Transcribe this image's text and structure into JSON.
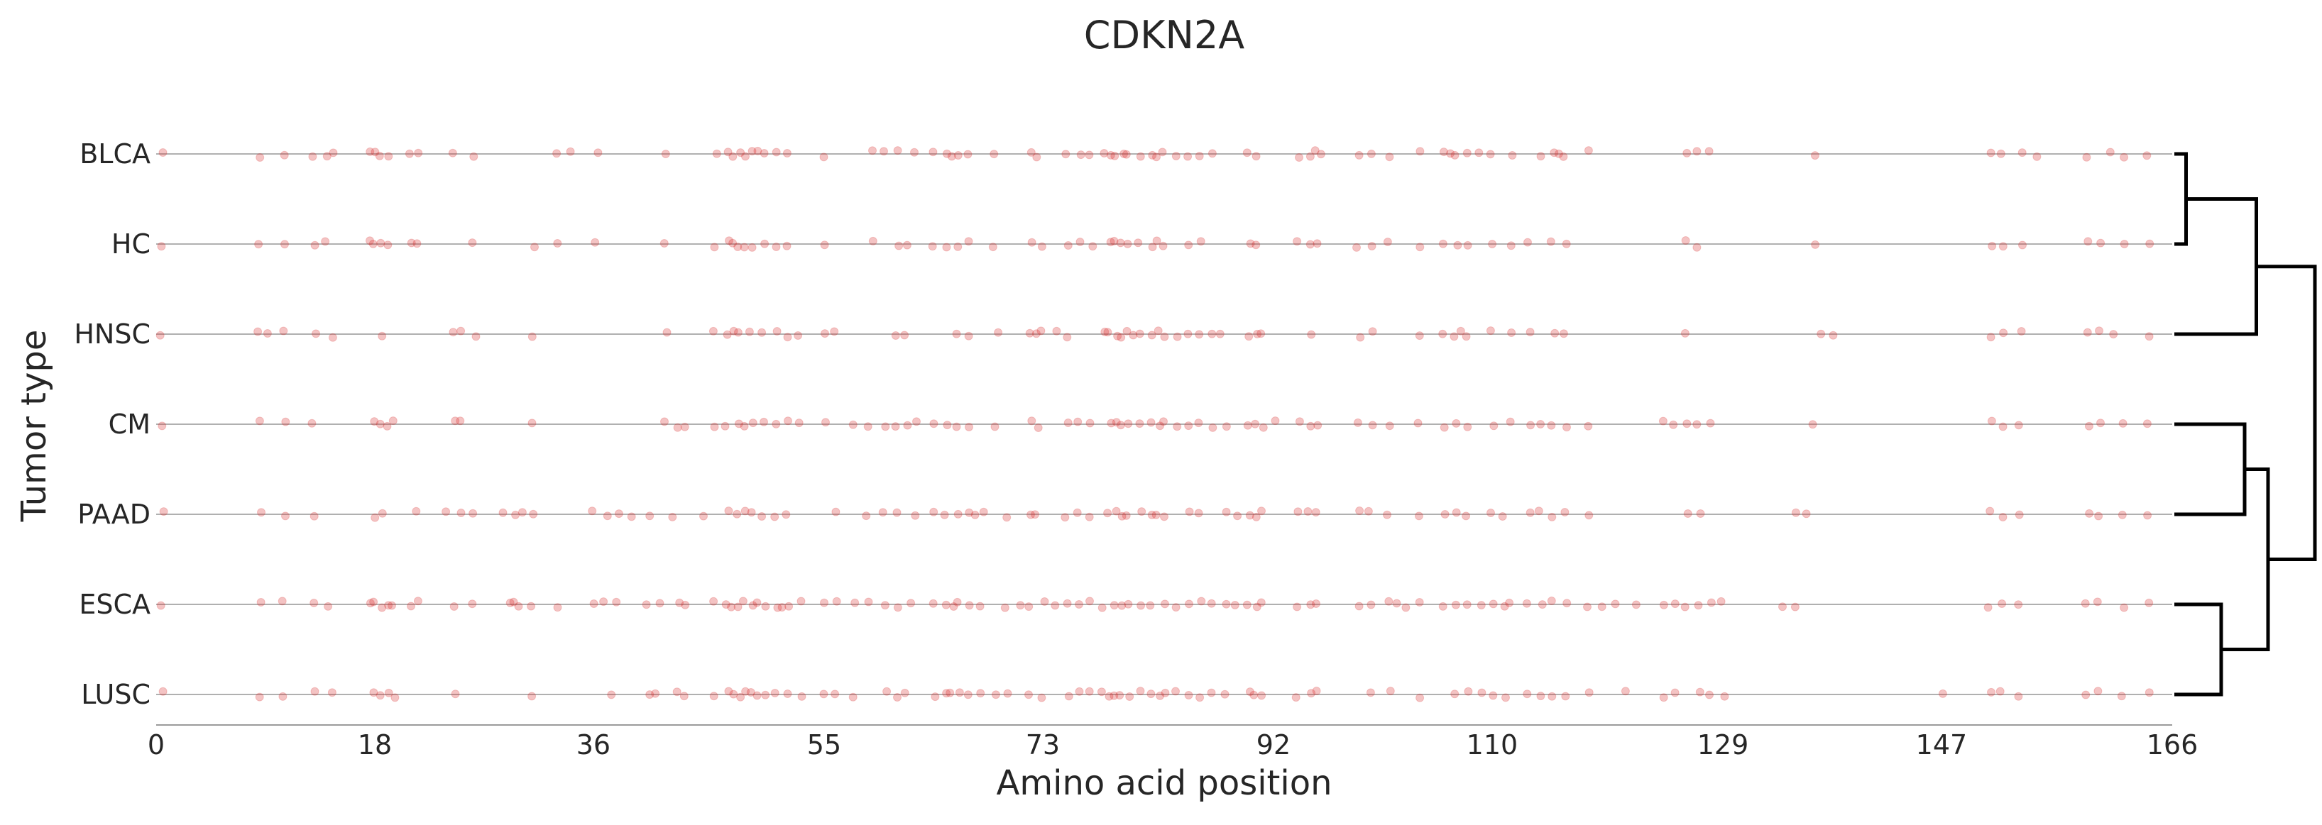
{
  "chart_data": {
    "type": "scatter",
    "title": "CDKN2A",
    "xlabel": "Amino acid position",
    "ylabel": "Tumor type",
    "xlim": [
      0,
      166
    ],
    "x_ticks": [
      "0",
      "18",
      "36",
      "55",
      "73",
      "92",
      "110",
      "129",
      "147",
      "166"
    ],
    "tumor_types": [
      "BLCA",
      "HC",
      "HNSC",
      "CM",
      "PAAD",
      "ESCA",
      "LUSC"
    ],
    "grid": false,
    "point_color": "#d62728",
    "baseline_color": "#b0b0b0",
    "dendrogram": {
      "leaf_order": [
        "BLCA",
        "HC",
        "HNSC",
        "CM",
        "PAAD",
        "ESCA",
        "LUSC"
      ],
      "merges": [
        [
          "BLCA",
          "HC",
          0.05
        ],
        [
          "BLCA+HC",
          "HNSC",
          0.35
        ],
        [
          "CM",
          "PAAD",
          0.3
        ],
        [
          "ESCA",
          "LUSC",
          0.2
        ],
        [
          "CM+PAAD",
          "ESCA+LUSC",
          0.4
        ],
        [
          "BLCA+HC+HNSC",
          "CM+PAAD+ESCA+LUSC",
          0.6
        ]
      ]
    },
    "series": [
      {
        "name": "BLCA",
        "x": [
          0.5,
          8.5,
          10.5,
          13,
          14,
          14.5,
          17.5,
          18,
          18.5,
          19,
          21,
          21.5,
          24.5,
          26,
          33,
          34,
          36.5,
          42,
          46,
          47,
          47.5,
          48,
          48.5,
          49,
          49.5,
          50,
          51,
          52,
          55,
          59,
          60,
          61,
          62.5,
          64,
          65,
          65.5,
          66,
          67,
          69,
          72,
          72.5,
          75,
          76,
          77,
          78,
          78.5,
          79,
          79.5,
          80,
          81,
          82,
          82.5,
          83,
          84,
          85,
          86,
          87,
          90,
          90.5,
          94,
          95,
          95.5,
          96,
          99,
          100,
          101.5,
          104,
          106,
          106.5,
          107,
          108,
          109,
          110,
          111.5,
          114,
          115,
          115.5,
          116,
          118,
          126,
          127,
          128,
          136.5,
          151,
          152,
          153.5,
          155,
          159,
          161,
          162,
          164
        ]
      },
      {
        "name": "HC",
        "x": [
          0.5,
          8.5,
          10.5,
          13,
          14,
          17.5,
          18,
          18.5,
          19,
          21,
          21.5,
          26,
          31,
          33,
          36,
          42,
          46,
          47,
          47.5,
          48,
          48.5,
          49,
          50,
          51,
          52,
          55,
          59,
          61,
          62,
          64,
          65,
          66,
          67,
          69,
          72,
          73,
          75,
          76,
          77,
          78.5,
          79,
          79.5,
          80,
          81,
          82,
          82.5,
          83,
          85,
          86,
          90,
          90.5,
          94,
          95,
          95.5,
          99,
          100,
          101.5,
          104,
          106,
          107,
          108,
          110,
          111.5,
          113,
          115,
          116,
          126,
          127,
          136.5,
          151,
          152,
          153.5,
          159,
          160,
          162,
          164
        ]
      },
      {
        "name": "HNSC",
        "x": [
          0.5,
          8.5,
          9,
          10.5,
          13,
          14.5,
          18.5,
          24.5,
          25,
          26.5,
          31,
          42,
          46,
          47,
          47.5,
          48,
          49,
          50,
          51,
          52,
          53,
          55,
          56,
          61,
          61.5,
          66,
          67,
          69.5,
          72,
          72.5,
          73,
          74,
          75,
          78,
          78.5,
          79,
          79.5,
          80,
          80.5,
          81,
          82,
          82.5,
          83,
          84,
          85,
          86,
          87,
          87.5,
          90,
          90.5,
          91,
          95,
          99,
          100,
          104,
          106,
          107,
          107.5,
          108,
          110,
          111.5,
          113,
          115,
          116,
          126,
          137,
          138,
          151,
          152,
          153.5,
          159,
          160,
          161,
          164
        ]
      },
      {
        "name": "CM",
        "x": [
          0.5,
          8.5,
          10.5,
          13,
          18,
          18.5,
          19,
          19.5,
          24.5,
          25,
          31,
          42,
          43,
          43.5,
          46,
          47,
          48,
          48.5,
          49,
          50,
          51,
          52,
          53,
          55,
          57.5,
          58.5,
          60,
          61,
          62,
          62.5,
          64,
          65,
          66,
          67,
          69,
          72,
          72.5,
          75,
          76,
          77,
          78.5,
          79,
          79.5,
          80,
          81,
          82,
          82.5,
          83,
          84,
          85,
          86,
          87,
          88,
          90,
          90.5,
          91,
          92,
          94,
          95,
          95.5,
          99,
          100,
          101.5,
          104,
          106,
          107,
          108,
          110,
          111.5,
          113,
          114,
          115,
          116,
          118,
          124,
          125,
          126,
          127,
          128,
          136.5,
          151,
          152,
          153.5,
          159,
          160,
          162,
          164
        ]
      },
      {
        "name": "PAAD",
        "x": [
          0.5,
          8.5,
          10.5,
          13,
          18,
          18.5,
          21.5,
          24,
          25,
          26,
          28.5,
          29.5,
          30,
          31,
          36,
          37,
          38,
          39,
          40.5,
          42.5,
          45,
          47,
          48,
          48.5,
          49,
          50,
          51,
          52,
          56,
          58.5,
          60,
          61,
          62.5,
          64,
          65,
          66,
          67,
          67.5,
          68,
          70,
          72,
          72.5,
          75,
          76,
          77,
          78.5,
          79,
          79.5,
          80,
          81,
          82,
          82.5,
          83,
          85,
          86,
          88,
          89,
          90,
          90.5,
          91,
          94,
          95,
          95.5,
          99,
          100,
          101.5,
          104,
          106,
          107,
          108,
          110,
          111,
          113,
          114,
          115,
          116,
          118,
          126,
          127,
          135,
          136,
          151,
          152,
          153.5,
          159,
          160,
          162,
          164
        ]
      },
      {
        "name": "ESCA",
        "x": [
          0.5,
          8.5,
          10.5,
          13,
          14,
          17.5,
          18,
          18.5,
          19,
          19.5,
          21,
          21.5,
          24.5,
          26,
          29,
          29.5,
          30,
          31,
          33,
          36,
          37,
          38,
          40.5,
          41.5,
          43,
          43.5,
          46,
          47,
          47.5,
          48,
          48.5,
          49,
          49.5,
          50,
          51,
          51.5,
          52,
          53,
          55,
          56,
          57.5,
          58.5,
          60,
          61,
          62,
          64,
          65,
          65.5,
          66,
          67,
          68,
          70,
          71,
          72,
          73,
          74,
          75,
          76,
          77,
          78,
          79,
          79.5,
          80,
          81,
          82,
          83,
          84,
          85,
          86,
          87,
          88,
          89,
          90,
          90.5,
          91,
          94,
          95,
          95.5,
          99,
          100,
          101.5,
          102,
          103,
          104,
          106,
          107,
          108,
          109,
          110,
          111,
          111.5,
          113,
          114,
          115,
          116,
          118,
          119,
          120,
          122,
          124,
          125,
          126,
          127,
          128,
          129,
          134,
          135,
          151,
          152,
          153.5,
          159,
          160,
          162,
          164
        ]
      },
      {
        "name": "LUSC",
        "x": [
          0.5,
          8.5,
          10.5,
          13,
          14.5,
          18,
          18.5,
          19,
          19.5,
          24.5,
          31,
          37.5,
          40.5,
          41,
          43,
          43.5,
          46,
          47,
          47.5,
          48,
          48.5,
          49,
          49.5,
          50,
          51,
          52,
          53,
          55,
          56,
          57.5,
          60,
          61,
          61.5,
          64,
          65,
          65.5,
          66,
          67,
          68,
          69,
          70,
          72,
          73,
          75,
          76,
          77,
          78,
          78.5,
          79,
          79.5,
          80,
          81,
          82,
          82.5,
          83,
          84,
          85,
          86,
          87,
          88,
          90,
          90.5,
          91,
          94,
          95,
          95.5,
          100,
          101.5,
          104,
          107,
          108,
          109,
          110,
          111,
          113,
          114,
          115,
          116,
          118,
          121,
          124,
          125,
          127,
          128,
          129,
          147,
          151,
          152,
          153.5,
          159,
          160,
          162,
          164
        ]
      }
    ]
  }
}
